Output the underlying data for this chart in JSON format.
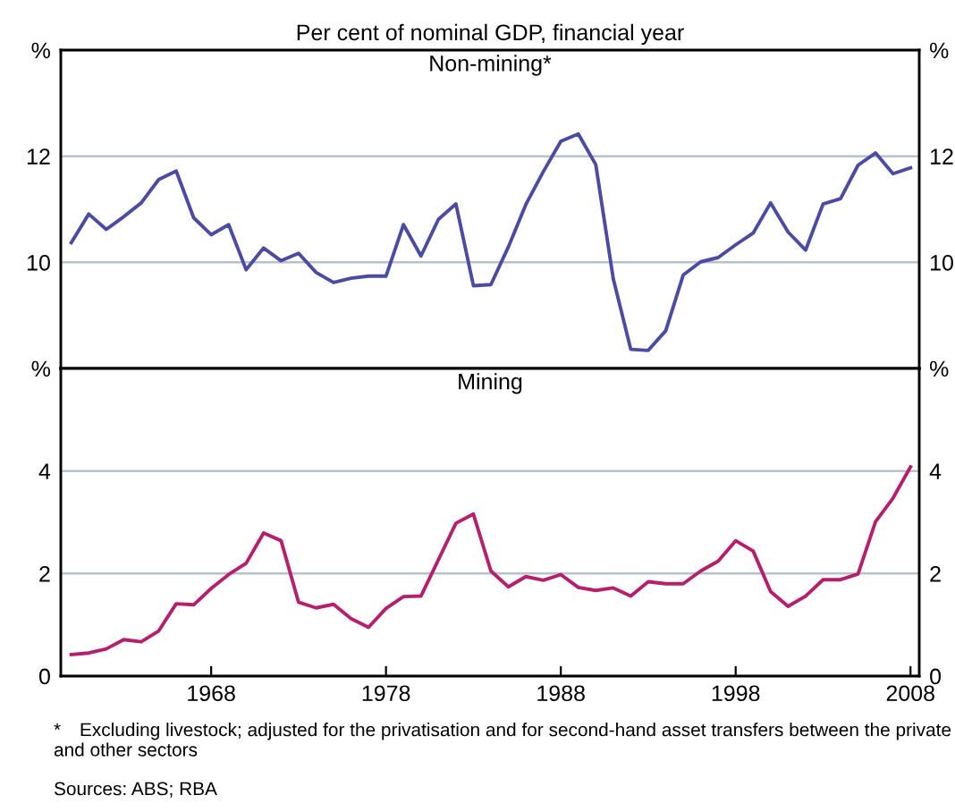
{
  "chart_data": [
    {
      "type": "line",
      "title": "Per cent of nominal GDP, financial year",
      "subtitle": "Non-mining*",
      "x": [
        1960,
        1961,
        1962,
        1963,
        1964,
        1965,
        1966,
        1967,
        1968,
        1969,
        1970,
        1971,
        1972,
        1973,
        1974,
        1975,
        1976,
        1977,
        1978,
        1979,
        1980,
        1981,
        1982,
        1983,
        1984,
        1985,
        1986,
        1987,
        1988,
        1989,
        1990,
        1991,
        1992,
        1993,
        1994,
        1995,
        1996,
        1997,
        1998,
        1999,
        2000,
        2001,
        2002,
        2003,
        2004,
        2005,
        2006,
        2007,
        2008
      ],
      "series": [
        {
          "color": "#4b4ba3",
          "values": [
            10.37,
            10.91,
            10.62,
            10.86,
            11.12,
            11.56,
            11.72,
            10.84,
            10.52,
            10.71,
            9.86,
            10.27,
            10.03,
            10.17,
            9.81,
            9.62,
            9.7,
            9.74,
            9.74,
            10.71,
            10.12,
            10.81,
            11.1,
            9.56,
            9.58,
            10.29,
            11.09,
            11.71,
            12.28,
            12.42,
            11.84,
            9.69,
            8.36,
            8.34,
            8.71,
            9.76,
            10.01,
            10.09,
            10.33,
            10.55,
            11.12,
            10.57,
            10.23,
            11.1,
            11.2,
            11.83,
            12.06,
            11.67,
            11.78
          ]
        }
      ],
      "xlim": [
        1959.4,
        2008.5
      ],
      "ylim": [
        8,
        14
      ],
      "yticks": [
        10,
        12,
        {
          "value": 14,
          "label": "%"
        }
      ],
      "y2lim": [
        8,
        14
      ],
      "y2ticks": [
        10,
        12,
        {
          "value": 14,
          "label": "%"
        }
      ],
      "grid": "y",
      "tick_labels": "y",
      "legend": false
    },
    {
      "type": "line",
      "title": "Mining",
      "x": [
        1960,
        1961,
        1962,
        1963,
        1964,
        1965,
        1966,
        1967,
        1968,
        1969,
        1970,
        1971,
        1972,
        1973,
        1974,
        1975,
        1976,
        1977,
        1978,
        1979,
        1980,
        1981,
        1982,
        1983,
        1984,
        1985,
        1986,
        1987,
        1988,
        1989,
        1990,
        1991,
        1992,
        1993,
        1994,
        1995,
        1996,
        1997,
        1998,
        1999,
        2000,
        2001,
        2002,
        2003,
        2004,
        2005,
        2006,
        2007,
        2008
      ],
      "series": [
        {
          "color": "#b4206e",
          "values": [
            0.42,
            0.45,
            0.53,
            0.71,
            0.67,
            0.88,
            1.41,
            1.39,
            1.71,
            1.98,
            2.2,
            2.79,
            2.64,
            1.44,
            1.33,
            1.4,
            1.12,
            0.95,
            1.32,
            1.55,
            1.56,
            2.27,
            2.98,
            3.16,
            2.05,
            1.74,
            1.94,
            1.87,
            1.98,
            1.73,
            1.67,
            1.72,
            1.56,
            1.84,
            1.8,
            1.8,
            2.05,
            2.24,
            2.64,
            2.44,
            1.65,
            1.36,
            1.56,
            1.88,
            1.88,
            1.99,
            3.01,
            3.47,
            4.08
          ]
        }
      ],
      "xlim": [
        1959.4,
        2008.5
      ],
      "xticks": [
        1968,
        1978,
        1988,
        1998,
        2008
      ],
      "ylim": [
        0,
        6
      ],
      "yticks": [
        0,
        2,
        4,
        {
          "value": 6,
          "label": "%"
        }
      ],
      "y2lim": [
        0,
        6
      ],
      "y2ticks": [
        0,
        2,
        4,
        {
          "value": 6,
          "label": "%"
        }
      ],
      "grid": "y",
      "legend": false,
      "annotations": [
        "* Excluding livestock; adjusted for the privatisation and for second-hand asset transfers between the private and other sectors",
        "Sources: ABS; RBA"
      ]
    }
  ]
}
